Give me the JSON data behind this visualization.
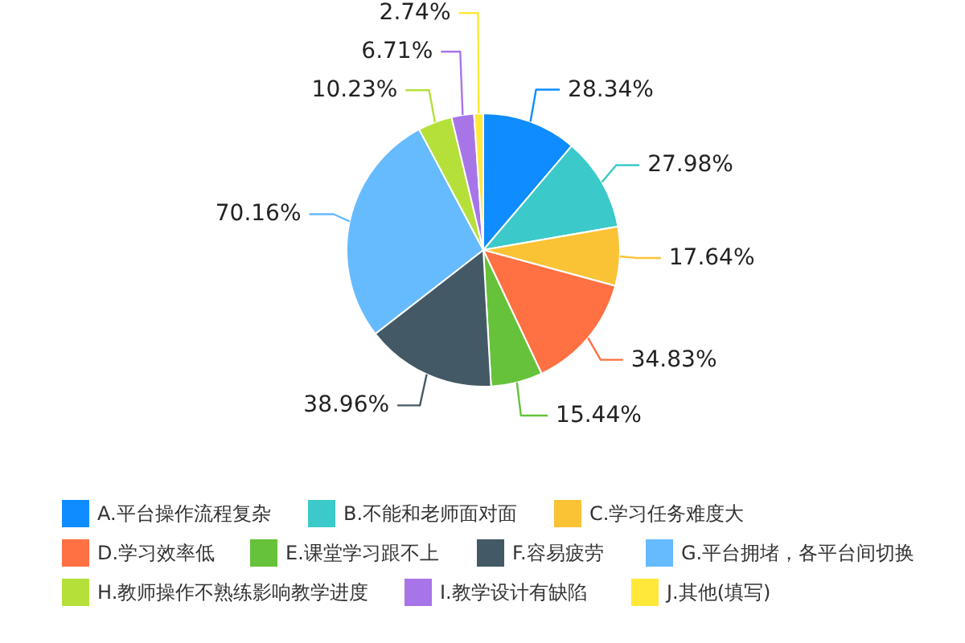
{
  "chart_data": {
    "type": "pie",
    "categories": [
      "A.平台操作流程复杂",
      "B.不能和老师面对面",
      "C.学习任务难度大",
      "D.学习效率低",
      "E.课堂学习跟不上",
      "F.容易疲劳",
      "G.平台拥堵，各平台间切换",
      "H.教师操作不熟练影响教学进度",
      "I.教学设计有缺陷",
      "J.其他(填写)"
    ],
    "values": [
      28.34,
      27.98,
      17.64,
      34.83,
      15.44,
      38.96,
      70.16,
      10.23,
      6.71,
      2.74
    ],
    "value_labels": [
      "28.34%",
      "27.98%",
      "17.64%",
      "34.83%",
      "15.44%",
      "38.96%",
      "70.16%",
      "10.23%",
      "6.71%",
      "2.74%"
    ],
    "colors": [
      "#0f8cff",
      "#3cc9c9",
      "#fac235",
      "#ff7043",
      "#66c23a",
      "#435965",
      "#66bbff",
      "#b5e03a",
      "#a875e8",
      "#ffe83a"
    ],
    "legend": "bottom"
  }
}
